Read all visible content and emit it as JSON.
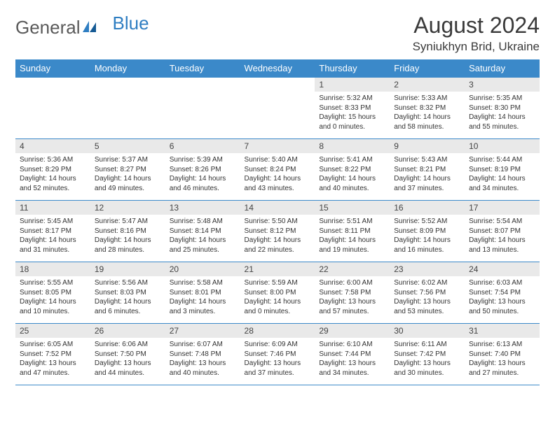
{
  "logo": {
    "text1": "General",
    "text2": "Blue"
  },
  "title": "August 2024",
  "location": "Syniukhyn Brid, Ukraine",
  "colors": {
    "header_bg": "#3b89c9",
    "header_text": "#ffffff",
    "daynum_bg": "#e9e9e9",
    "rule": "#3b89c9",
    "text": "#333333",
    "logo_gray": "#5a5a5a",
    "logo_blue": "#2f7ec2"
  },
  "weekdays": [
    "Sunday",
    "Monday",
    "Tuesday",
    "Wednesday",
    "Thursday",
    "Friday",
    "Saturday"
  ],
  "first_weekday_index": 4,
  "days": [
    {
      "n": 1,
      "sr": "5:32 AM",
      "ss": "8:33 PM",
      "dl": "15 hours and 0 minutes."
    },
    {
      "n": 2,
      "sr": "5:33 AM",
      "ss": "8:32 PM",
      "dl": "14 hours and 58 minutes."
    },
    {
      "n": 3,
      "sr": "5:35 AM",
      "ss": "8:30 PM",
      "dl": "14 hours and 55 minutes."
    },
    {
      "n": 4,
      "sr": "5:36 AM",
      "ss": "8:29 PM",
      "dl": "14 hours and 52 minutes."
    },
    {
      "n": 5,
      "sr": "5:37 AM",
      "ss": "8:27 PM",
      "dl": "14 hours and 49 minutes."
    },
    {
      "n": 6,
      "sr": "5:39 AM",
      "ss": "8:26 PM",
      "dl": "14 hours and 46 minutes."
    },
    {
      "n": 7,
      "sr": "5:40 AM",
      "ss": "8:24 PM",
      "dl": "14 hours and 43 minutes."
    },
    {
      "n": 8,
      "sr": "5:41 AM",
      "ss": "8:22 PM",
      "dl": "14 hours and 40 minutes."
    },
    {
      "n": 9,
      "sr": "5:43 AM",
      "ss": "8:21 PM",
      "dl": "14 hours and 37 minutes."
    },
    {
      "n": 10,
      "sr": "5:44 AM",
      "ss": "8:19 PM",
      "dl": "14 hours and 34 minutes."
    },
    {
      "n": 11,
      "sr": "5:45 AM",
      "ss": "8:17 PM",
      "dl": "14 hours and 31 minutes."
    },
    {
      "n": 12,
      "sr": "5:47 AM",
      "ss": "8:16 PM",
      "dl": "14 hours and 28 minutes."
    },
    {
      "n": 13,
      "sr": "5:48 AM",
      "ss": "8:14 PM",
      "dl": "14 hours and 25 minutes."
    },
    {
      "n": 14,
      "sr": "5:50 AM",
      "ss": "8:12 PM",
      "dl": "14 hours and 22 minutes."
    },
    {
      "n": 15,
      "sr": "5:51 AM",
      "ss": "8:11 PM",
      "dl": "14 hours and 19 minutes."
    },
    {
      "n": 16,
      "sr": "5:52 AM",
      "ss": "8:09 PM",
      "dl": "14 hours and 16 minutes."
    },
    {
      "n": 17,
      "sr": "5:54 AM",
      "ss": "8:07 PM",
      "dl": "14 hours and 13 minutes."
    },
    {
      "n": 18,
      "sr": "5:55 AM",
      "ss": "8:05 PM",
      "dl": "14 hours and 10 minutes."
    },
    {
      "n": 19,
      "sr": "5:56 AM",
      "ss": "8:03 PM",
      "dl": "14 hours and 6 minutes."
    },
    {
      "n": 20,
      "sr": "5:58 AM",
      "ss": "8:01 PM",
      "dl": "14 hours and 3 minutes."
    },
    {
      "n": 21,
      "sr": "5:59 AM",
      "ss": "8:00 PM",
      "dl": "14 hours and 0 minutes."
    },
    {
      "n": 22,
      "sr": "6:00 AM",
      "ss": "7:58 PM",
      "dl": "13 hours and 57 minutes."
    },
    {
      "n": 23,
      "sr": "6:02 AM",
      "ss": "7:56 PM",
      "dl": "13 hours and 53 minutes."
    },
    {
      "n": 24,
      "sr": "6:03 AM",
      "ss": "7:54 PM",
      "dl": "13 hours and 50 minutes."
    },
    {
      "n": 25,
      "sr": "6:05 AM",
      "ss": "7:52 PM",
      "dl": "13 hours and 47 minutes."
    },
    {
      "n": 26,
      "sr": "6:06 AM",
      "ss": "7:50 PM",
      "dl": "13 hours and 44 minutes."
    },
    {
      "n": 27,
      "sr": "6:07 AM",
      "ss": "7:48 PM",
      "dl": "13 hours and 40 minutes."
    },
    {
      "n": 28,
      "sr": "6:09 AM",
      "ss": "7:46 PM",
      "dl": "13 hours and 37 minutes."
    },
    {
      "n": 29,
      "sr": "6:10 AM",
      "ss": "7:44 PM",
      "dl": "13 hours and 34 minutes."
    },
    {
      "n": 30,
      "sr": "6:11 AM",
      "ss": "7:42 PM",
      "dl": "13 hours and 30 minutes."
    },
    {
      "n": 31,
      "sr": "6:13 AM",
      "ss": "7:40 PM",
      "dl": "13 hours and 27 minutes."
    }
  ],
  "labels": {
    "sunrise": "Sunrise:",
    "sunset": "Sunset:",
    "daylight": "Daylight:"
  }
}
